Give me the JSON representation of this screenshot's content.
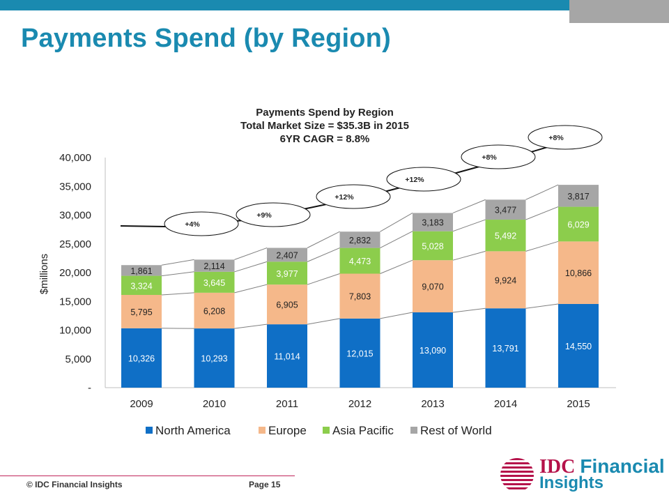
{
  "slide": {
    "title": "Payments Spend (by Region)",
    "footer_copyright": "© IDC Financial Insights",
    "footer_page": "Page 15",
    "logo_text_a": "IDC",
    "logo_text_b": "Financial",
    "logo_text_c": "Insights"
  },
  "colors": {
    "accent": "#1a8ab0",
    "north_america": "#0f6fc6",
    "europe": "#f5b88a",
    "asia_pacific": "#8ccd4c",
    "rest_of_world": "#a6a6a6",
    "logo_red": "#b5124a"
  },
  "chart_data": {
    "type": "bar",
    "stacked": true,
    "title_lines": [
      "Payments Spend by Region",
      "Total Market Size = $35.3B in 2015",
      "6YR CAGR = 8.8%"
    ],
    "ylabel": "$millions",
    "xlabel": "",
    "ylim": [
      0,
      40000
    ],
    "yticks": [
      "-",
      "5,000",
      "10,000",
      "15,000",
      "20,000",
      "25,000",
      "30,000",
      "35,000",
      "40,000"
    ],
    "categories": [
      "2009",
      "2010",
      "2011",
      "2012",
      "2013",
      "2014",
      "2015"
    ],
    "series": [
      {
        "name": "North America",
        "values": [
          10326,
          10293,
          11014,
          12015,
          13090,
          13791,
          14550
        ],
        "labels": [
          "10,326",
          "10,293",
          "11,014",
          "12,015",
          "13,090",
          "13,791",
          "14,550"
        ]
      },
      {
        "name": "Europe",
        "values": [
          5795,
          6208,
          6905,
          7803,
          9070,
          9924,
          10866
        ],
        "labels": [
          "5,795",
          "6,208",
          "6,905",
          "7,803",
          "9,070",
          "9,924",
          "10,866"
        ]
      },
      {
        "name": "Asia Pacific",
        "values": [
          3324,
          3645,
          3977,
          4473,
          5028,
          5492,
          6029
        ],
        "labels": [
          "3,324",
          "3,645",
          "3,977",
          "4,473",
          "5,028",
          "5,492",
          "6,029"
        ]
      },
      {
        "name": "Rest of World",
        "values": [
          1861,
          2114,
          2407,
          2832,
          3183,
          3477,
          3817
        ],
        "labels": [
          "1,861",
          "2,114",
          "2,407",
          "2,832",
          "3,183",
          "3,477",
          "3,817"
        ]
      }
    ],
    "growth_labels": [
      "+4%",
      "+9%",
      "+12%",
      "+12%",
      "+8%",
      "+8%"
    ],
    "legend_position": "bottom",
    "grid": false
  }
}
